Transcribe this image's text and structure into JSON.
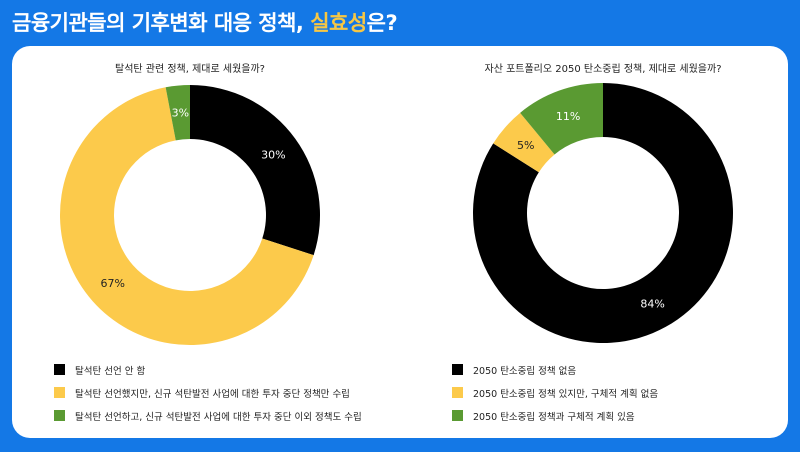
{
  "headline": {
    "before": "금융기관들의 기후변화 대응 정책, ",
    "highlight": "실효성",
    "after": "은?"
  },
  "colors": {
    "background": "#1478e6",
    "highlight": "#f7c744",
    "black": "#000000",
    "yellow": "#fcca4b",
    "green": "#5a9a32"
  },
  "chart_data": [
    {
      "type": "pie",
      "title": "탈석탄 관련 정책, 제대로 세웠을까?",
      "categories": [
        "탈석탄 선언 안 함",
        "탈석탄 선언했지만, 신규 석탄발전 사업에 대한 투자 중단 정책만 수립",
        "탈석탄 선언하고, 신규 석탄발전 사업에 대한 투자 중단 이외 정책도 수립"
      ],
      "values": [
        30,
        67,
        3
      ],
      "labels": [
        "30%",
        "67%",
        "3%"
      ],
      "colors": [
        "#000000",
        "#fcca4b",
        "#5a9a32"
      ],
      "label_colors": [
        "#ffffff",
        "#222222",
        "#ffffff"
      ],
      "legend_position": "bottom"
    },
    {
      "type": "pie",
      "title": "자산 포트폴리오 2050 탄소중립 정책, 제대로 세웠을까?",
      "categories": [
        "2050 탄소중립 정책 없음",
        "2050 탄소중립 정책 있지만, 구체적 계획 없음",
        "2050 탄소중립 정책과 구체적 계획 있음"
      ],
      "values": [
        84,
        5,
        11
      ],
      "labels": [
        "84%",
        "5%",
        "11%"
      ],
      "colors": [
        "#000000",
        "#fcca4b",
        "#5a9a32"
      ],
      "label_colors": [
        "#ffffff",
        "#222222",
        "#ffffff"
      ],
      "legend_position": "bottom"
    }
  ]
}
